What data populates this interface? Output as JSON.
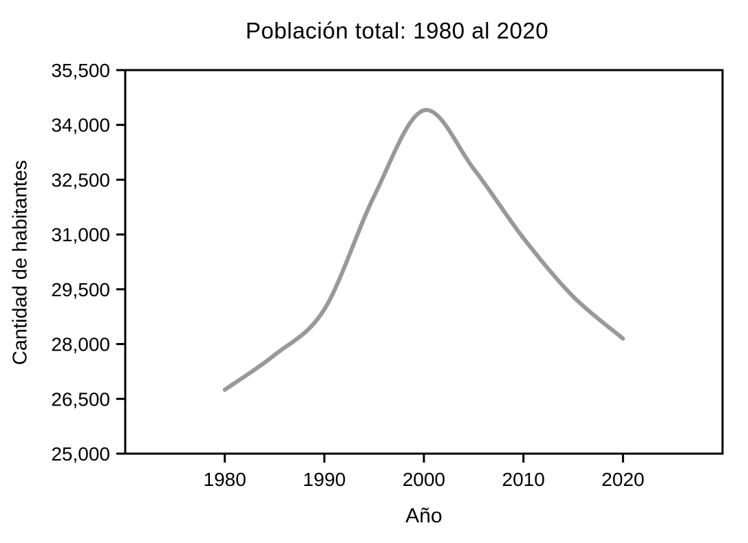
{
  "chart_data": {
    "type": "line",
    "title": "Población total: 1980 al 2020",
    "xlabel": "Año",
    "ylabel": "Cantidad de habitantes",
    "series_name": "Población total",
    "x": [
      1980,
      1985,
      1990,
      1995,
      2000,
      2005,
      2010,
      2015,
      2020
    ],
    "values": [
      26750,
      27700,
      28950,
      32050,
      34400,
      32800,
      30900,
      29300,
      28150
    ],
    "xlim": [
      1970,
      2030
    ],
    "ylim": [
      25000,
      35500
    ],
    "xticks": [
      1980,
      1990,
      2000,
      2010,
      2020
    ],
    "xtick_labels": [
      "1980",
      "1990",
      "2000",
      "2010",
      "2020"
    ],
    "ytick_values": [
      25000,
      26500,
      28000,
      29500,
      31000,
      32500,
      34000,
      35500
    ],
    "ytick_labels": [
      "25,000",
      "26,500",
      "28,000",
      "29,500",
      "31,000",
      "32,500",
      "34,000",
      "35,500"
    ],
    "grid": false,
    "legend": false,
    "smooth": true,
    "line_color": "#999999",
    "line_width": 6,
    "axis_color": "#000000",
    "background_color": "#ffffff"
  }
}
